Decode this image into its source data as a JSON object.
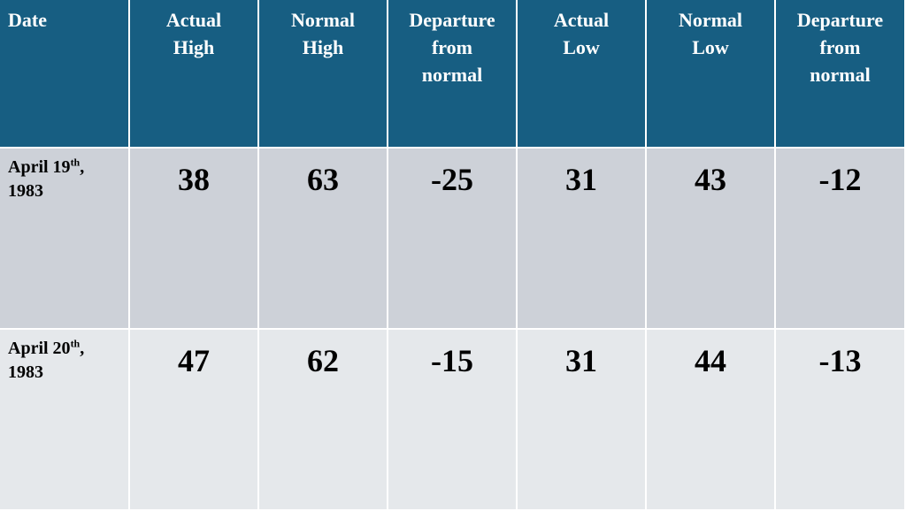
{
  "table": {
    "header": [
      [
        "Date"
      ],
      [
        "Actual",
        "High"
      ],
      [
        "Normal",
        "High"
      ],
      [
        "Departure",
        "from",
        "normal"
      ],
      [
        "Actual",
        "Low"
      ],
      [
        "Normal",
        "Low"
      ],
      [
        "Departure",
        "from",
        "normal"
      ]
    ],
    "rows": [
      {
        "date": {
          "main": "April 19",
          "sup": "th",
          "tail": ",",
          "year": "1983"
        },
        "values": [
          38,
          63,
          -25,
          31,
          43,
          -12
        ]
      },
      {
        "date": {
          "main": "April 20",
          "sup": "th",
          "tail": ",",
          "year": "1983"
        },
        "values": [
          47,
          62,
          -15,
          31,
          44,
          -13
        ]
      }
    ]
  }
}
